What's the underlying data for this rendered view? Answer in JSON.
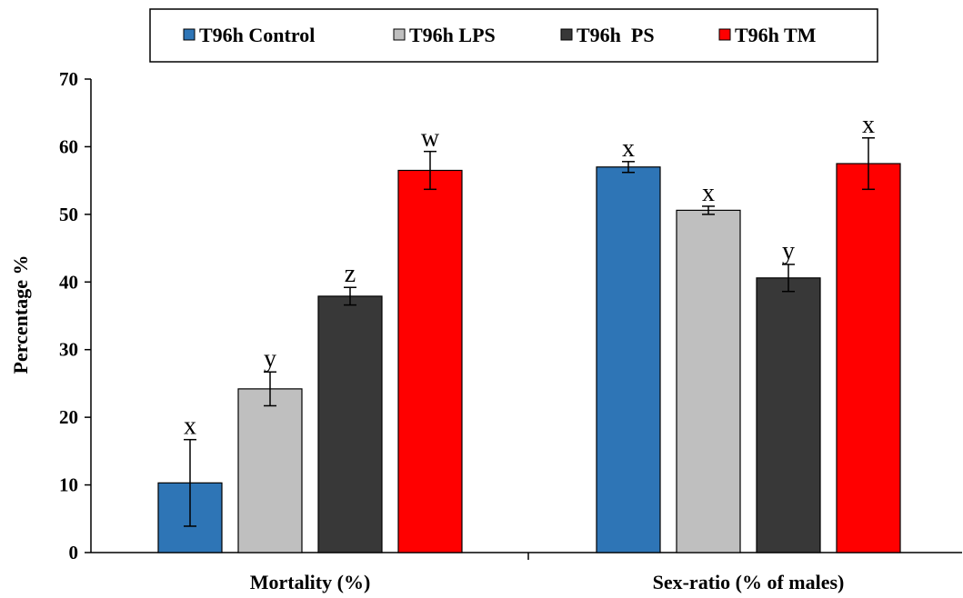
{
  "chart_data": {
    "type": "bar",
    "categories": [
      "Mortality (%)",
      "Sex-ratio (% of males)"
    ],
    "series": [
      {
        "name": "T96h Control",
        "color": "#2E75B6",
        "values": [
          10.3,
          57.0
        ],
        "errors": [
          6.4,
          0.8
        ],
        "letters": [
          "x",
          "x"
        ]
      },
      {
        "name": "T96h LPS",
        "color": "#BFBFBF",
        "values": [
          24.2,
          50.6
        ],
        "errors": [
          2.5,
          0.6
        ],
        "letters": [
          "y",
          "x"
        ]
      },
      {
        "name": "T96h  PS",
        "color": "#383838",
        "values": [
          37.9,
          40.6
        ],
        "errors": [
          1.3,
          2.0
        ],
        "letters": [
          "z",
          "y"
        ]
      },
      {
        "name": "T96h TM",
        "color": "#FF0000",
        "values": [
          56.5,
          57.5
        ],
        "errors": [
          2.8,
          3.8
        ],
        "letters": [
          "w",
          "x"
        ]
      }
    ],
    "xlabel": "",
    "ylabel": "Percentage %",
    "ylim": [
      0,
      70
    ],
    "yticks": [
      0,
      10,
      20,
      30,
      40,
      50,
      60,
      70
    ],
    "grid": false,
    "legend_position": "top"
  }
}
